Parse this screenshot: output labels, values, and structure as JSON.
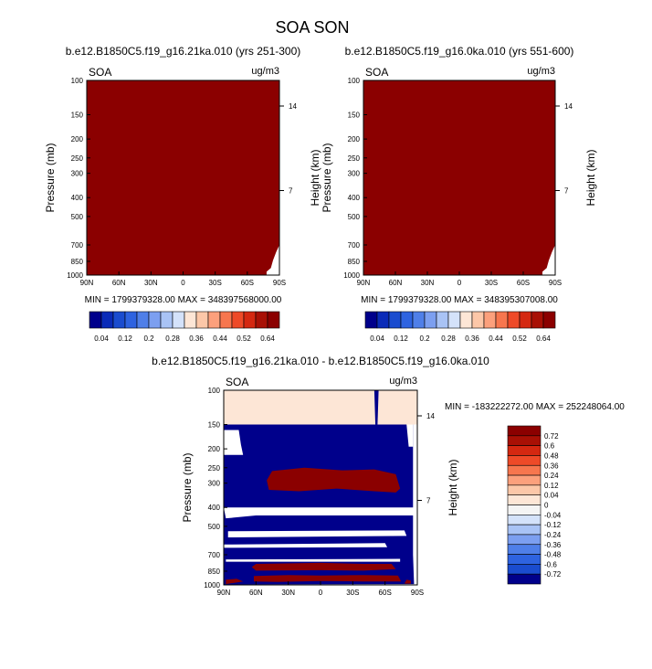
{
  "title": "SOA SON",
  "chart_data": [
    {
      "type": "heatmap",
      "title": "b.e12.B1850C5.f19_g16.21ka.010 (yrs 251-300)",
      "variable": "SOA",
      "units": "ug/m3",
      "xlabel": "",
      "ylabel": "Pressure (mb)",
      "y2label": "Height (km)",
      "x_ticks": [
        "90N",
        "60N",
        "30N",
        "0",
        "30S",
        "60S",
        "90S"
      ],
      "y_ticks": [
        "100",
        "150",
        "200",
        "250",
        "300",
        "400",
        "500",
        "700",
        "850",
        "1000"
      ],
      "y2_ticks": [
        "14",
        "7"
      ],
      "stats": "MIN = 1799379328.00  MAX = 348397568000.00",
      "fill_color": "#8b0000",
      "colorbar": {
        "labels": [
          "0.04",
          "0.12",
          "0.2",
          "0.28",
          "0.36",
          "0.44",
          "0.52",
          "0.64"
        ],
        "colors": [
          "#00008b",
          "#0a2bb8",
          "#1a4ccf",
          "#2e63e0",
          "#4f7fe8",
          "#7c9ff0",
          "#a9c3f5",
          "#d4e2fa",
          "#fde6d6",
          "#fcc7a8",
          "#fca07c",
          "#f7764e",
          "#ee4a28",
          "#d42811",
          "#a81005",
          "#8b0000"
        ]
      }
    },
    {
      "type": "heatmap",
      "title": "b.e12.B1850C5.f19_g16.0ka.010 (yrs 551-600)",
      "variable": "SOA",
      "units": "ug/m3",
      "xlabel": "",
      "ylabel": "Pressure (mb)",
      "y2label": "Height (km)",
      "x_ticks": [
        "90N",
        "60N",
        "30N",
        "0",
        "30S",
        "60S",
        "90S"
      ],
      "y_ticks": [
        "100",
        "150",
        "200",
        "250",
        "300",
        "400",
        "500",
        "700",
        "850",
        "1000"
      ],
      "y2_ticks": [
        "14",
        "7"
      ],
      "stats": "MIN = 1799379328.00  MAX = 348395307008.00",
      "fill_color": "#8b0000",
      "colorbar": {
        "labels": [
          "0.04",
          "0.12",
          "0.2",
          "0.28",
          "0.36",
          "0.44",
          "0.52",
          "0.64"
        ],
        "colors": [
          "#00008b",
          "#0a2bb8",
          "#1a4ccf",
          "#2e63e0",
          "#4f7fe8",
          "#7c9ff0",
          "#a9c3f5",
          "#d4e2fa",
          "#fde6d6",
          "#fcc7a8",
          "#fca07c",
          "#f7764e",
          "#ee4a28",
          "#d42811",
          "#a81005",
          "#8b0000"
        ]
      }
    },
    {
      "type": "heatmap",
      "title": "b.e12.B1850C5.f19_g16.21ka.010 - b.e12.B1850C5.f19_g16.0ka.010",
      "variable": "SOA",
      "units": "ug/m3",
      "xlabel": "",
      "ylabel": "Pressure (mb)",
      "y2label": "Height (km)",
      "x_ticks": [
        "90N",
        "60N",
        "30N",
        "0",
        "30S",
        "60S",
        "90S"
      ],
      "y_ticks": [
        "100",
        "150",
        "200",
        "250",
        "300",
        "400",
        "500",
        "700",
        "850",
        "1000"
      ],
      "y2_ticks": [
        "14",
        "7"
      ],
      "stats": "MIN = -183222272.00  MAX = 252248064.00",
      "colors": {
        "top_band": "#fde6d6",
        "negative": "#00008b",
        "positive": "#8b0000"
      },
      "colorbar": {
        "labels": [
          "0.72",
          "0.6",
          "0.48",
          "0.36",
          "0.24",
          "0.12",
          "0.04",
          "0",
          "-0.04",
          "-0.12",
          "-0.24",
          "-0.36",
          "-0.48",
          "-0.6",
          "-0.72"
        ],
        "colors": [
          "#8b0000",
          "#a81005",
          "#d42811",
          "#ee4a28",
          "#f7764e",
          "#fca07c",
          "#fcc7a8",
          "#fde6d6",
          "#f4f4f4",
          "#d4e2fa",
          "#a9c3f5",
          "#7c9ff0",
          "#4f7fe8",
          "#2e63e0",
          "#1a4ccf",
          "#00008b"
        ]
      }
    }
  ]
}
